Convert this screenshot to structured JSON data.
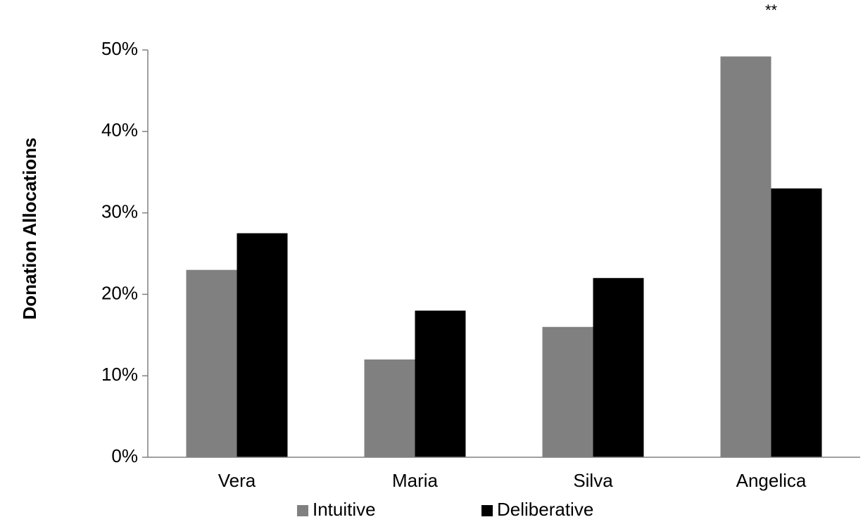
{
  "chart_data": {
    "type": "bar",
    "title": "",
    "xlabel": "",
    "ylabel": "Donation Allocations",
    "categories": [
      "Vera",
      "Maria",
      "Silva",
      "Angelica"
    ],
    "series": [
      {
        "name": "Intuitive",
        "values": [
          23,
          12,
          16,
          49.2
        ],
        "color": "#808080"
      },
      {
        "name": "Deliberative",
        "values": [
          27.5,
          18,
          22,
          33
        ],
        "color": "#000000"
      }
    ],
    "ylim": [
      0,
      50
    ],
    "yticks": [
      0,
      10,
      20,
      30,
      40,
      50
    ],
    "ytick_labels": [
      "0%",
      "10%",
      "20%",
      "30%",
      "40%",
      "50%"
    ],
    "grid": false,
    "legend_position": "bottom",
    "annotations": [
      {
        "category": "Angelica",
        "text": "**"
      }
    ]
  }
}
